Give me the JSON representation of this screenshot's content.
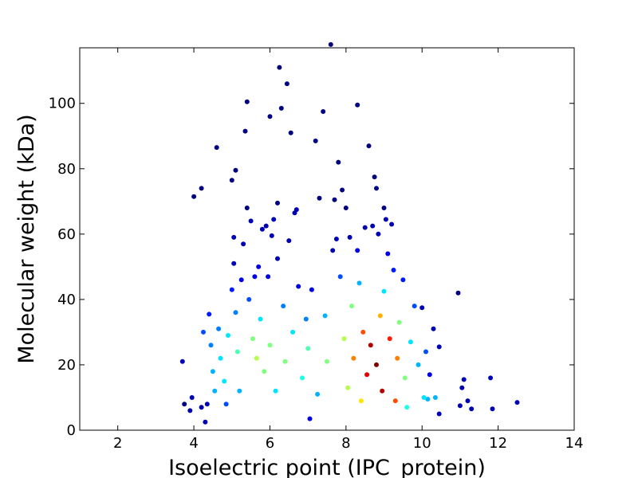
{
  "chart_data": {
    "type": "scatter",
    "title": "",
    "xlabel": "Isoelectric point (IPC_protein)",
    "ylabel": "Molecular weight (kDa)",
    "xlim": [
      1,
      14
    ],
    "ylim": [
      0,
      117
    ],
    "xticks": [
      2,
      4,
      6,
      8,
      10,
      12,
      14
    ],
    "yticks": [
      0,
      20,
      40,
      60,
      80,
      100
    ],
    "colormap": "jet (point density)",
    "grid": false,
    "points": [
      [
        3.7,
        21,
        0.05
      ],
      [
        3.75,
        8,
        0.0
      ],
      [
        3.9,
        6,
        0.05
      ],
      [
        3.95,
        10,
        0.05
      ],
      [
        4.0,
        71.5,
        0.0
      ],
      [
        4.2,
        74,
        0.0
      ],
      [
        4.2,
        7,
        0.05
      ],
      [
        4.25,
        30,
        0.2
      ],
      [
        4.3,
        2.5,
        0.05
      ],
      [
        4.35,
        8,
        0.05
      ],
      [
        4.4,
        35.5,
        0.15
      ],
      [
        4.45,
        26,
        0.25
      ],
      [
        4.5,
        18,
        0.3
      ],
      [
        4.55,
        12,
        0.3
      ],
      [
        4.6,
        86.5,
        0.0
      ],
      [
        4.65,
        31,
        0.25
      ],
      [
        4.7,
        22,
        0.35
      ],
      [
        4.8,
        15,
        0.35
      ],
      [
        4.85,
        8,
        0.2
      ],
      [
        4.9,
        29,
        0.35
      ],
      [
        5.0,
        43,
        0.15
      ],
      [
        5.0,
        76.5,
        0.0
      ],
      [
        5.05,
        59,
        0.05
      ],
      [
        5.05,
        51,
        0.05
      ],
      [
        5.1,
        79.5,
        0.0
      ],
      [
        5.1,
        36,
        0.25
      ],
      [
        5.15,
        24,
        0.45
      ],
      [
        5.2,
        12,
        0.3
      ],
      [
        5.25,
        46,
        0.1
      ],
      [
        5.3,
        57,
        0.05
      ],
      [
        5.35,
        91.5,
        0.0
      ],
      [
        5.4,
        100.5,
        0.0
      ],
      [
        5.4,
        68,
        0.0
      ],
      [
        5.45,
        40,
        0.2
      ],
      [
        5.5,
        64,
        0.05
      ],
      [
        5.55,
        28,
        0.5
      ],
      [
        5.6,
        47,
        0.1
      ],
      [
        5.65,
        22,
        0.55
      ],
      [
        5.7,
        50,
        0.1
      ],
      [
        5.75,
        34,
        0.35
      ],
      [
        5.8,
        61.5,
        0.05
      ],
      [
        5.85,
        18,
        0.5
      ],
      [
        5.9,
        62.5,
        0.05
      ],
      [
        5.95,
        47,
        0.1
      ],
      [
        6.0,
        96,
        0.0
      ],
      [
        6.0,
        26,
        0.5
      ],
      [
        6.05,
        59.5,
        0.05
      ],
      [
        6.1,
        64.5,
        0.05
      ],
      [
        6.15,
        12,
        0.35
      ],
      [
        6.2,
        69.5,
        0.0
      ],
      [
        6.2,
        52.5,
        0.05
      ],
      [
        6.25,
        111,
        0.0
      ],
      [
        6.3,
        98.5,
        0.0
      ],
      [
        6.35,
        38,
        0.25
      ],
      [
        6.4,
        21,
        0.5
      ],
      [
        6.45,
        106,
        0.0
      ],
      [
        6.5,
        58,
        0.05
      ],
      [
        6.55,
        91,
        0.0
      ],
      [
        6.6,
        30,
        0.35
      ],
      [
        6.65,
        66.5,
        0.05
      ],
      [
        6.7,
        67.5,
        0.05
      ],
      [
        6.75,
        44,
        0.1
      ],
      [
        6.85,
        16,
        0.4
      ],
      [
        6.95,
        34,
        0.25
      ],
      [
        7.0,
        25,
        0.45
      ],
      [
        7.05,
        3.5,
        0.1
      ],
      [
        7.1,
        43,
        0.1
      ],
      [
        7.2,
        88.5,
        0.0
      ],
      [
        7.25,
        11,
        0.3
      ],
      [
        7.3,
        71,
        0.0
      ],
      [
        7.4,
        97.5,
        0.0
      ],
      [
        7.45,
        35,
        0.3
      ],
      [
        7.5,
        21,
        0.5
      ],
      [
        7.6,
        118,
        0.0
      ],
      [
        7.65,
        55,
        0.05
      ],
      [
        7.7,
        70.5,
        0.0
      ],
      [
        7.75,
        58.5,
        0.05
      ],
      [
        7.8,
        82,
        0.0
      ],
      [
        7.85,
        47,
        0.2
      ],
      [
        7.9,
        73.5,
        0.0
      ],
      [
        7.95,
        28,
        0.55
      ],
      [
        8.0,
        68,
        0.0
      ],
      [
        8.05,
        13,
        0.55
      ],
      [
        8.1,
        59,
        0.05
      ],
      [
        8.15,
        38,
        0.5
      ],
      [
        8.2,
        22,
        0.75
      ],
      [
        8.3,
        99.5,
        0.0
      ],
      [
        8.3,
        55,
        0.1
      ],
      [
        8.35,
        45,
        0.3
      ],
      [
        8.4,
        9,
        0.65
      ],
      [
        8.45,
        30,
        0.8
      ],
      [
        8.5,
        62,
        0.05
      ],
      [
        8.55,
        17,
        0.9
      ],
      [
        8.6,
        87,
        0.0
      ],
      [
        8.65,
        26,
        0.95
      ],
      [
        8.7,
        62.5,
        0.05
      ],
      [
        8.75,
        77.5,
        0.0
      ],
      [
        8.8,
        74,
        0.0
      ],
      [
        8.8,
        20,
        1.0
      ],
      [
        8.85,
        60,
        0.05
      ],
      [
        8.9,
        35,
        0.7
      ],
      [
        8.95,
        12,
        0.95
      ],
      [
        9.0,
        68,
        0.0
      ],
      [
        9.0,
        42.5,
        0.35
      ],
      [
        9.05,
        64.5,
        0.05
      ],
      [
        9.1,
        54,
        0.1
      ],
      [
        9.15,
        28,
        0.85
      ],
      [
        9.2,
        63,
        0.05
      ],
      [
        9.25,
        49,
        0.15
      ],
      [
        9.3,
        9,
        0.8
      ],
      [
        9.35,
        22,
        0.75
      ],
      [
        9.4,
        33,
        0.5
      ],
      [
        9.5,
        46,
        0.15
      ],
      [
        9.55,
        16,
        0.5
      ],
      [
        9.6,
        7,
        0.4
      ],
      [
        9.7,
        27,
        0.35
      ],
      [
        9.8,
        38,
        0.2
      ],
      [
        9.9,
        20,
        0.3
      ],
      [
        10.0,
        37.5,
        0.05
      ],
      [
        10.05,
        10,
        0.35
      ],
      [
        10.1,
        24,
        0.2
      ],
      [
        10.15,
        9.5,
        0.3
      ],
      [
        10.2,
        17,
        0.1
      ],
      [
        10.3,
        31,
        0.05
      ],
      [
        10.35,
        10,
        0.3
      ],
      [
        10.45,
        25.5,
        0.05
      ],
      [
        10.45,
        5,
        0.05
      ],
      [
        10.95,
        42,
        0.0
      ],
      [
        11.0,
        7.5,
        0.05
      ],
      [
        11.05,
        13,
        0.05
      ],
      [
        11.1,
        15.5,
        0.05
      ],
      [
        11.2,
        9,
        0.05
      ],
      [
        11.3,
        6.5,
        0.05
      ],
      [
        11.8,
        16,
        0.05
      ],
      [
        11.85,
        6.5,
        0.05
      ],
      [
        12.5,
        8.5,
        0.05
      ]
    ]
  }
}
